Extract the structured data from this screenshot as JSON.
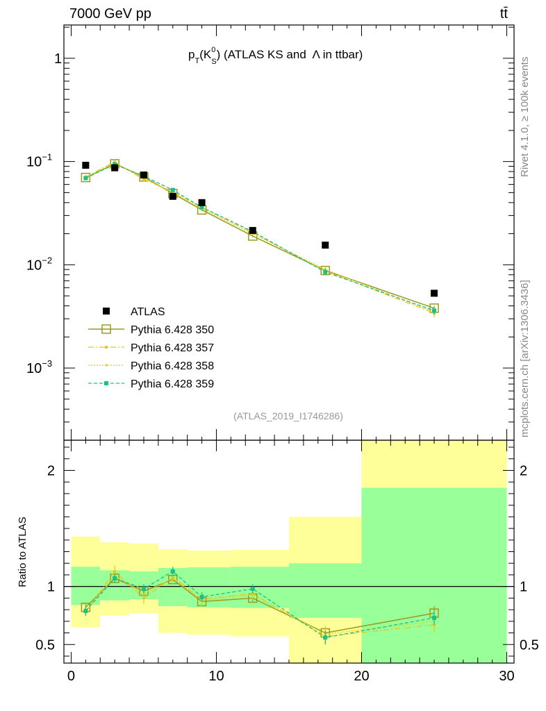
{
  "header": {
    "energy_label": "7000 GeV pp",
    "process_label": "tt̄"
  },
  "side_labels": {
    "rivet": "Rivet 4.1.0, ≥ 100k events",
    "mcplots": "mcplots.cern.ch [arXiv:1306.3436]"
  },
  "colors": {
    "data": "#000000",
    "p350": "#9a9a1e",
    "p357": "#e8c51e",
    "p358": "#d4d41e",
    "p359": "#18c08a",
    "band_outer": "#ffff99",
    "band_inner": "#99ff99"
  },
  "chart_data": [
    {
      "type": "scatter",
      "panel": "main",
      "title": "p_T(K_S^0) (ATLAS KS and Λ in ttbar)",
      "title_parts": {
        "p": "p",
        "sub_t": "T",
        "open": "(K",
        "sup_0": "0",
        "sub_s": "S",
        "close": ") (ATLAS KS and",
        "lambda": "Λ",
        "tail": "in ttbar)"
      },
      "analysis_id": "(ATLAS_2019_I1746286)",
      "yscale": "log",
      "xlim": [
        -0.5,
        30.5
      ],
      "ylim": [
        0.0002,
        2.1
      ],
      "yticks": [
        {
          "label": "1",
          "value": 1
        },
        {
          "label": "10",
          "exp": "−1",
          "value": 0.1
        },
        {
          "label": "10",
          "exp": "−2",
          "value": 0.01
        },
        {
          "label": "10",
          "exp": "−3",
          "value": 0.001
        }
      ],
      "x": [
        1,
        3,
        5,
        7,
        9,
        12.5,
        17.5,
        25
      ],
      "series": [
        {
          "name": "ATLAS",
          "style": "data",
          "values": [
            0.092,
            0.087,
            0.074,
            0.046,
            0.04,
            0.0215,
            0.0155,
            0.0053
          ]
        },
        {
          "name": "Pythia 6.428 350",
          "style": "p350",
          "values": [
            0.07,
            0.095,
            0.071,
            0.049,
            0.034,
            0.019,
            0.0088,
            0.0038
          ],
          "errors": [
            0.002,
            0.002,
            0.002,
            0.0015,
            0.001,
            0.0005,
            0.0004,
            0.0002
          ]
        },
        {
          "name": "Pythia 6.428 357",
          "style": "p357",
          "values": [
            0.071,
            0.099,
            0.067,
            0.051,
            0.036,
            0.0205,
            0.0087,
            0.0034
          ],
          "errors": [
            0.003,
            0.003,
            0.003,
            0.002,
            0.0015,
            0.0008,
            0.0006,
            0.0003
          ]
        },
        {
          "name": "Pythia 6.428 358",
          "style": "p358",
          "values": [
            0.07,
            0.097,
            0.069,
            0.05,
            0.035,
            0.02,
            0.009,
            0.0035
          ],
          "errors": [
            0.003,
            0.003,
            0.003,
            0.002,
            0.0015,
            0.0008,
            0.0006,
            0.0003
          ]
        },
        {
          "name": "Pythia 6.428 359",
          "style": "p359",
          "values": [
            0.069,
            0.094,
            0.072,
            0.053,
            0.036,
            0.021,
            0.0085,
            0.0036
          ],
          "errors": [
            0.003,
            0.003,
            0.003,
            0.002,
            0.0015,
            0.0008,
            0.0006,
            0.0003
          ]
        }
      ],
      "legend_position": "bottom-left"
    },
    {
      "type": "line",
      "panel": "ratio",
      "ylabel": "Ratio to ATLAS",
      "xlim": [
        -0.5,
        30.5
      ],
      "ylim": [
        0.34,
        2.26
      ],
      "yticks": [
        {
          "label": "0.5",
          "value": 0.5
        },
        {
          "label": "1",
          "value": 1
        },
        {
          "label": "2",
          "value": 2
        }
      ],
      "xticks": [
        {
          "label": "0",
          "value": 0
        },
        {
          "label": "10",
          "value": 10
        },
        {
          "label": "20",
          "value": 20
        },
        {
          "label": "30",
          "value": 30
        }
      ],
      "bands": [
        {
          "x0": 0,
          "x1": 2,
          "outer": [
            0.65,
            1.43
          ],
          "inner": [
            0.84,
            1.17
          ]
        },
        {
          "x0": 2,
          "x1": 4,
          "outer": [
            0.75,
            1.38
          ],
          "inner": [
            0.88,
            1.14
          ]
        },
        {
          "x0": 4,
          "x1": 6,
          "outer": [
            0.77,
            1.37
          ],
          "inner": [
            0.89,
            1.13
          ]
        },
        {
          "x0": 6,
          "x1": 8,
          "outer": [
            0.6,
            1.32
          ],
          "inner": [
            0.83,
            1.16
          ]
        },
        {
          "x0": 8,
          "x1": 11,
          "outer": [
            0.585,
            1.31
          ],
          "inner": [
            0.82,
            1.165
          ]
        },
        {
          "x0": 11,
          "x1": 15,
          "outer": [
            0.57,
            1.315
          ],
          "inner": [
            0.815,
            1.17
          ]
        },
        {
          "x0": 15,
          "x1": 20,
          "outer": [
            0.33,
            1.6
          ],
          "inner": [
            0.73,
            1.2
          ]
        },
        {
          "x0": 20,
          "x1": 30,
          "outer": [
            0.33,
            2.28
          ],
          "inner": [
            0.33,
            1.85
          ]
        }
      ],
      "x": [
        1,
        3,
        5,
        7,
        9,
        12.5,
        17.5,
        25
      ],
      "series": [
        {
          "name": "Pythia 6.428 350",
          "style": "p350",
          "values": [
            0.82,
            1.07,
            0.96,
            1.06,
            0.87,
            0.9,
            0.6,
            0.77
          ],
          "errors": [
            0.03,
            0.03,
            0.03,
            0.04,
            0.03,
            0.03,
            0.05,
            0.06
          ]
        },
        {
          "name": "Pythia 6.428 357",
          "style": "p357",
          "values": [
            0.78,
            1.13,
            0.9,
            1.08,
            0.89,
            0.94,
            0.57,
            0.67
          ],
          "errors": [
            0.04,
            0.05,
            0.05,
            0.05,
            0.05,
            0.04,
            0.07,
            0.07
          ]
        },
        {
          "name": "Pythia 6.428 358",
          "style": "p358",
          "values": [
            0.79,
            1.09,
            0.94,
            1.07,
            0.88,
            0.93,
            0.59,
            0.7
          ],
          "errors": [
            0.04,
            0.05,
            0.05,
            0.05,
            0.05,
            0.04,
            0.07,
            0.07
          ]
        },
        {
          "name": "Pythia 6.428 359",
          "style": "p359",
          "values": [
            0.79,
            1.07,
            0.98,
            1.13,
            0.91,
            0.98,
            0.56,
            0.73
          ],
          "errors": [
            0.04,
            0.04,
            0.04,
            0.04,
            0.04,
            0.04,
            0.06,
            0.06
          ]
        }
      ]
    }
  ]
}
